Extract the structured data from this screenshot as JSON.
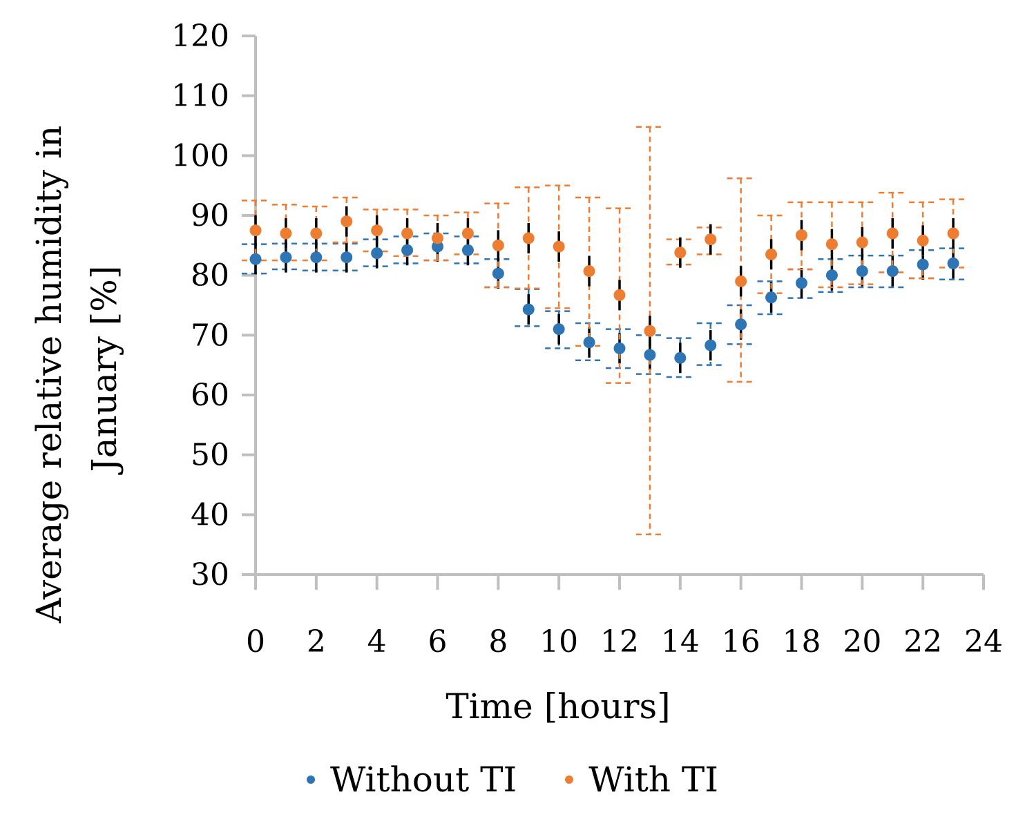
{
  "chart_data": {
    "type": "scatter",
    "title": "",
    "xlabel": "Time [hours]",
    "ylabel_lines": [
      "Average relative humidity in",
      "January [%]"
    ],
    "xlim": [
      0,
      24
    ],
    "ylim": [
      30,
      120
    ],
    "x_ticks": [
      0,
      2,
      4,
      6,
      8,
      10,
      12,
      14,
      16,
      18,
      20,
      22,
      24
    ],
    "y_ticks": [
      30,
      40,
      50,
      60,
      70,
      80,
      90,
      100,
      110,
      120
    ],
    "x_tick_labels": [
      "0",
      "2",
      "4",
      "6",
      "8",
      "10",
      "12",
      "14",
      "16",
      "18",
      "20",
      "22",
      "24"
    ],
    "y_tick_labels": [
      "30",
      "40",
      "50",
      "60",
      "70",
      "80",
      "90",
      "100",
      "110",
      "120"
    ],
    "grid": false,
    "legend_position": "bottom",
    "x": [
      0,
      1,
      2,
      3,
      4,
      5,
      6,
      7,
      8,
      9,
      10,
      11,
      12,
      13,
      14,
      15,
      16,
      17,
      18,
      19,
      20,
      21,
      22,
      23
    ],
    "series": [
      {
        "name": "Without TI",
        "color": "#2e75b6",
        "values": [
          82.7,
          83.0,
          83.0,
          83.0,
          83.7,
          84.2,
          84.8,
          84.2,
          80.3,
          74.3,
          71.0,
          68.8,
          67.8,
          66.7,
          66.2,
          68.3,
          71.8,
          76.3,
          78.7,
          80.0,
          80.7,
          80.7,
          81.8,
          82.0
        ],
        "error_low": [
          80.3,
          81.0,
          80.8,
          80.8,
          81.5,
          82.0,
          82.5,
          82.0,
          78.0,
          71.5,
          67.8,
          65.8,
          64.5,
          63.5,
          63.0,
          65.0,
          68.5,
          73.5,
          76.2,
          77.2,
          78.0,
          78.0,
          79.5,
          79.3
        ],
        "error_high": [
          85.2,
          85.3,
          85.3,
          85.3,
          86.0,
          86.5,
          87.0,
          86.5,
          82.7,
          77.7,
          74.0,
          72.0,
          71.0,
          70.0,
          69.5,
          72.0,
          75.0,
          79.0,
          81.0,
          82.7,
          83.3,
          83.3,
          84.2,
          84.5
        ]
      },
      {
        "name": "With TI",
        "color": "#ed7d31",
        "values": [
          87.5,
          87.0,
          87.0,
          89.0,
          87.5,
          87.0,
          86.2,
          87.0,
          85.0,
          86.2,
          84.8,
          80.7,
          76.7,
          70.7,
          83.8,
          86.0,
          79.0,
          83.5,
          86.7,
          85.2,
          85.5,
          87.0,
          85.8,
          87.0
        ],
        "error_low": [
          82.5,
          82.5,
          82.5,
          85.5,
          84.0,
          83.2,
          82.5,
          83.5,
          78.0,
          77.8,
          74.5,
          68.2,
          62.0,
          36.7,
          81.8,
          83.5,
          62.2,
          77.0,
          81.0,
          78.0,
          78.5,
          80.5,
          79.5,
          81.3
        ],
        "error_high": [
          92.5,
          91.8,
          91.5,
          93.0,
          91.0,
          91.0,
          90.0,
          90.5,
          92.0,
          94.7,
          95.0,
          93.0,
          91.2,
          104.8,
          86.0,
          88.0,
          96.2,
          90.0,
          92.2,
          92.2,
          92.2,
          93.8,
          92.2,
          92.7
        ]
      }
    ]
  }
}
